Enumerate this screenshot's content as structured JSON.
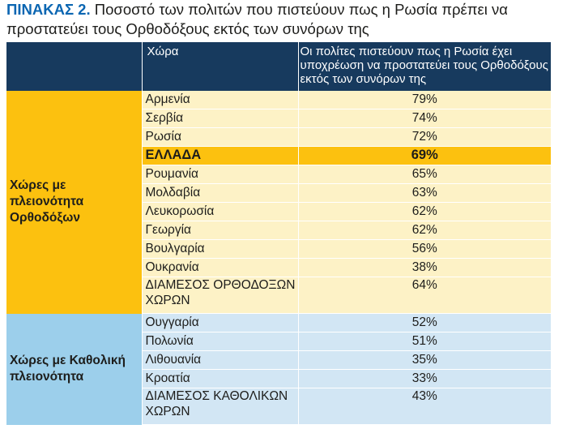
{
  "title": {
    "label": "ΠΙΝΑΚΑΣ 2.",
    "text": "Ποσοστό των πολιτών που πιστεύουν πως η Ρωσία πρέπει να προστατεύει τους Ορθοδόξους εκτός των συνόρων της"
  },
  "header": {
    "country": "Χώρα",
    "value": "Οι πολίτες πιστεύουν πως η Ρωσία έχει υποχρέωση να προστατεύει τους Ορθοδόξους εκτός των συνόρων της"
  },
  "orthodox": {
    "group_label": "Χώρες με πλειονότητα Ορθοδόξων",
    "rows": [
      {
        "country": "Αρμενία",
        "value": "79%"
      },
      {
        "country": "Σερβία",
        "value": "74%"
      },
      {
        "country": "Ρωσία",
        "value": "72%"
      },
      {
        "country": "ΕΛΛΑΔΑ",
        "value": "69%"
      },
      {
        "country": "Ρουμανία",
        "value": "65%"
      },
      {
        "country": "Μολδαβία",
        "value": "63%"
      },
      {
        "country": "Λευκορωσία",
        "value": "62%"
      },
      {
        "country": "Γεωργία",
        "value": "62%"
      },
      {
        "country": "Βουλγαρία",
        "value": "56%"
      },
      {
        "country": "Ουκρανία",
        "value": "38%"
      }
    ],
    "average": {
      "label": "ΔΙΑΜΕΣΟΣ ΟΡΘΟΔΟΞΩΝ ΧΩΡΩΝ",
      "value": "64%"
    }
  },
  "catholic": {
    "group_label": "Χώρες με Καθολική πλειονότητα",
    "rows": [
      {
        "country": "Ουγγαρία",
        "value": "52%"
      },
      {
        "country": "Πολωνία",
        "value": "51%"
      },
      {
        "country": "Λιθουανία",
        "value": "35%"
      },
      {
        "country": "Κροατία",
        "value": "33%"
      }
    ],
    "average": {
      "label": "ΔΙΑΜΕΣΟΣ ΚΑΘΟΛΙΚΩΝ ΧΩΡΩΝ",
      "value": "43%"
    }
  },
  "colors": {
    "header_bg": "#173a5e",
    "title_label": "#0b66b2",
    "orthodox_group": "#fcc10f",
    "orthodox_rows": "#fdf2c6",
    "catholic_group": "#9ccfeb",
    "catholic_rows": "#d2e6f4"
  }
}
